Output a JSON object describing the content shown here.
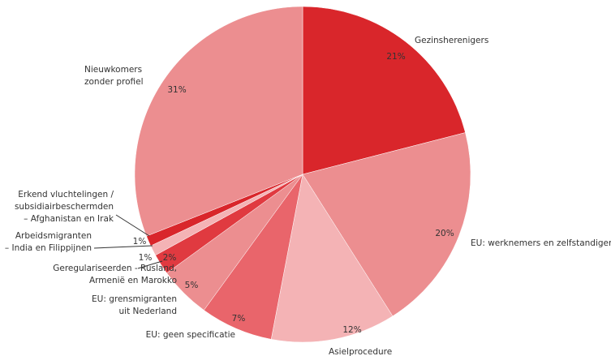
{
  "chart_data": {
    "type": "pie",
    "categories": [
      [
        "Gezinsherenigers"
      ],
      [
        "EU: werknemers en zelfstandigen"
      ],
      [
        "Asielprocedure"
      ],
      [
        "EU: geen specificatie"
      ],
      [
        "EU: grensmigranten",
        "uit Nederland"
      ],
      [
        "Geregulariseerden - Rusland,",
        "Armenië en Marokko"
      ],
      [
        "Arbeidsmigranten",
        "– India en Filippijnen"
      ],
      [
        "Erkend vluchtelingen /",
        "subsidiairbeschermden",
        "– Afghanistan en Irak"
      ],
      [
        "Nieuwkomers",
        "zonder profiel"
      ]
    ],
    "values": [
      21,
      20,
      12,
      7,
      5,
      2,
      1,
      1,
      31
    ],
    "value_labels": [
      "21%",
      "20%",
      "12%",
      "7%",
      "5%",
      "2%",
      "1%",
      "1%",
      "31%"
    ],
    "colors": [
      "#d9262b",
      "#ec8e90",
      "#f4b3b5",
      "#e9656b",
      "#ec8e90",
      "#e03a40",
      "#f4b3b5",
      "#d9262b",
      "#ec8e90"
    ]
  }
}
